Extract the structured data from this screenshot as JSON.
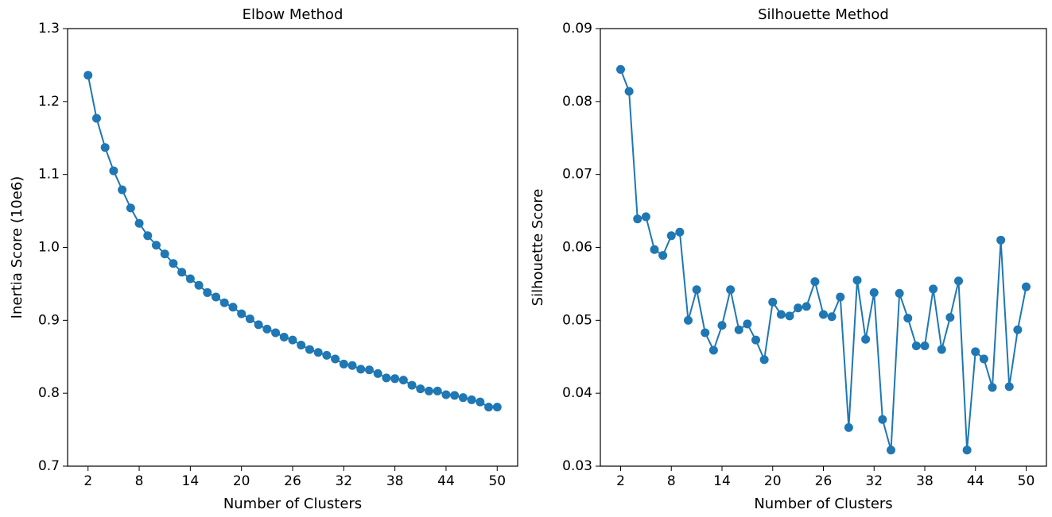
{
  "chart_data": [
    {
      "type": "line",
      "title": "Elbow Method",
      "x_label": "Number of Clusters",
      "y_label": "Inertia Score (10e6)",
      "x": [
        2,
        3,
        4,
        5,
        6,
        7,
        8,
        9,
        10,
        11,
        12,
        13,
        14,
        15,
        16,
        17,
        18,
        19,
        20,
        21,
        22,
        23,
        24,
        25,
        26,
        27,
        28,
        29,
        30,
        31,
        32,
        33,
        34,
        35,
        36,
        37,
        38,
        39,
        40,
        41,
        42,
        43,
        44,
        45,
        46,
        47,
        48,
        49,
        50
      ],
      "series": [
        {
          "color": "#1f77b4",
          "values": [
            1.236,
            1.177,
            1.137,
            1.105,
            1.079,
            1.054,
            1.033,
            1.016,
            1.003,
            0.991,
            0.978,
            0.966,
            0.957,
            0.948,
            0.938,
            0.932,
            0.924,
            0.918,
            0.909,
            0.902,
            0.894,
            0.888,
            0.883,
            0.877,
            0.873,
            0.866,
            0.86,
            0.856,
            0.852,
            0.847,
            0.84,
            0.838,
            0.833,
            0.832,
            0.827,
            0.821,
            0.82,
            0.818,
            0.811,
            0.806,
            0.803,
            0.803,
            0.798,
            0.797,
            0.794,
            0.791,
            0.788,
            0.781,
            0.781
          ]
        }
      ],
      "xlim": [
        -0.4,
        52.4
      ],
      "xticks": [
        2,
        8,
        14,
        20,
        26,
        32,
        38,
        44,
        50
      ],
      "ylim": [
        0.7,
        1.3
      ],
      "yticks": [
        0.7,
        0.8,
        0.9,
        {
          "value": 1,
          "label": "1.0"
        },
        1.1,
        1.2,
        1.3
      ]
    },
    {
      "type": "line",
      "title": "Silhouette Method",
      "x_label": "Number of Clusters",
      "y_label": "Silhouette Score",
      "x": [
        2,
        3,
        4,
        5,
        6,
        7,
        8,
        9,
        10,
        11,
        12,
        13,
        14,
        15,
        16,
        17,
        18,
        19,
        20,
        21,
        22,
        23,
        24,
        25,
        26,
        27,
        28,
        29,
        30,
        31,
        32,
        33,
        34,
        35,
        36,
        37,
        38,
        39,
        40,
        41,
        42,
        43,
        44,
        45,
        46,
        47,
        48,
        49,
        50
      ],
      "series": [
        {
          "color": "#1f77b4",
          "values": [
            0.0844,
            0.0814,
            0.0639,
            0.0642,
            0.0597,
            0.0589,
            0.0616,
            0.0621,
            0.05,
            0.0542,
            0.0483,
            0.0459,
            0.0493,
            0.0542,
            0.0487,
            0.0495,
            0.0473,
            0.0446,
            0.0525,
            0.0508,
            0.0506,
            0.0517,
            0.0519,
            0.0553,
            0.0508,
            0.0505,
            0.0532,
            0.0353,
            0.0555,
            0.0474,
            0.0538,
            0.0364,
            0.0322,
            0.0537,
            0.0503,
            0.0465,
            0.0465,
            0.0543,
            0.046,
            0.0504,
            0.0554,
            0.0322,
            0.0457,
            0.0447,
            0.0408,
            0.061,
            0.0409,
            0.0487,
            0.0546
          ]
        }
      ],
      "xlim": [
        -0.4,
        52.4
      ],
      "xticks": [
        2,
        8,
        14,
        20,
        26,
        32,
        38,
        44,
        50
      ],
      "ylim": [
        0.03,
        0.09
      ],
      "yticks": [
        0.03,
        0.04,
        0.05,
        0.06,
        0.07,
        0.08,
        0.09
      ]
    }
  ]
}
